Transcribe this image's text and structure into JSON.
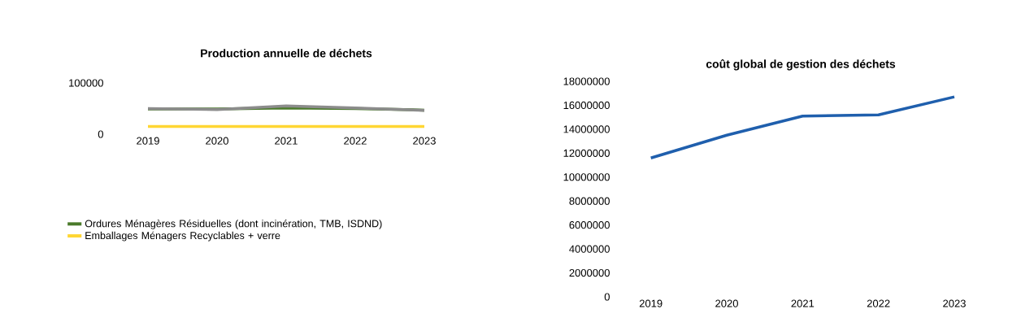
{
  "chart_data": [
    {
      "type": "line",
      "title": "Production annuelle de déchets",
      "categories": [
        "2019",
        "2020",
        "2021",
        "2022",
        "2023"
      ],
      "series": [
        {
          "name": "Ordures Ménagères Résiduelles (dont incinération, TMB, ISDND)",
          "color": "#4a7a2a",
          "values": [
            49000,
            49000,
            51000,
            50000,
            47000
          ]
        },
        {
          "color": "#8c8c8c",
          "values": [
            50000,
            48000,
            55000,
            51000,
            46500
          ]
        },
        {
          "name": "Emballages Ménagers Recyclables + verre",
          "color": "#ffd633",
          "values": [
            15000,
            15000,
            15000,
            15000,
            15000
          ]
        }
      ],
      "ylim": [
        0,
        100000
      ],
      "yticks": [
        0,
        100000
      ],
      "legend": "bottom"
    },
    {
      "type": "line",
      "title": "coût global de gestion des déchets",
      "categories": [
        "2019",
        "2020",
        "2021",
        "2022",
        "2023"
      ],
      "series": [
        {
          "color": "#1f5fad",
          "values": [
            11600000,
            13500000,
            15100000,
            15200000,
            16700000
          ]
        }
      ],
      "ylim": [
        0,
        18000000
      ],
      "yticks": [
        0,
        2000000,
        4000000,
        6000000,
        8000000,
        10000000,
        12000000,
        14000000,
        16000000,
        18000000
      ]
    }
  ]
}
